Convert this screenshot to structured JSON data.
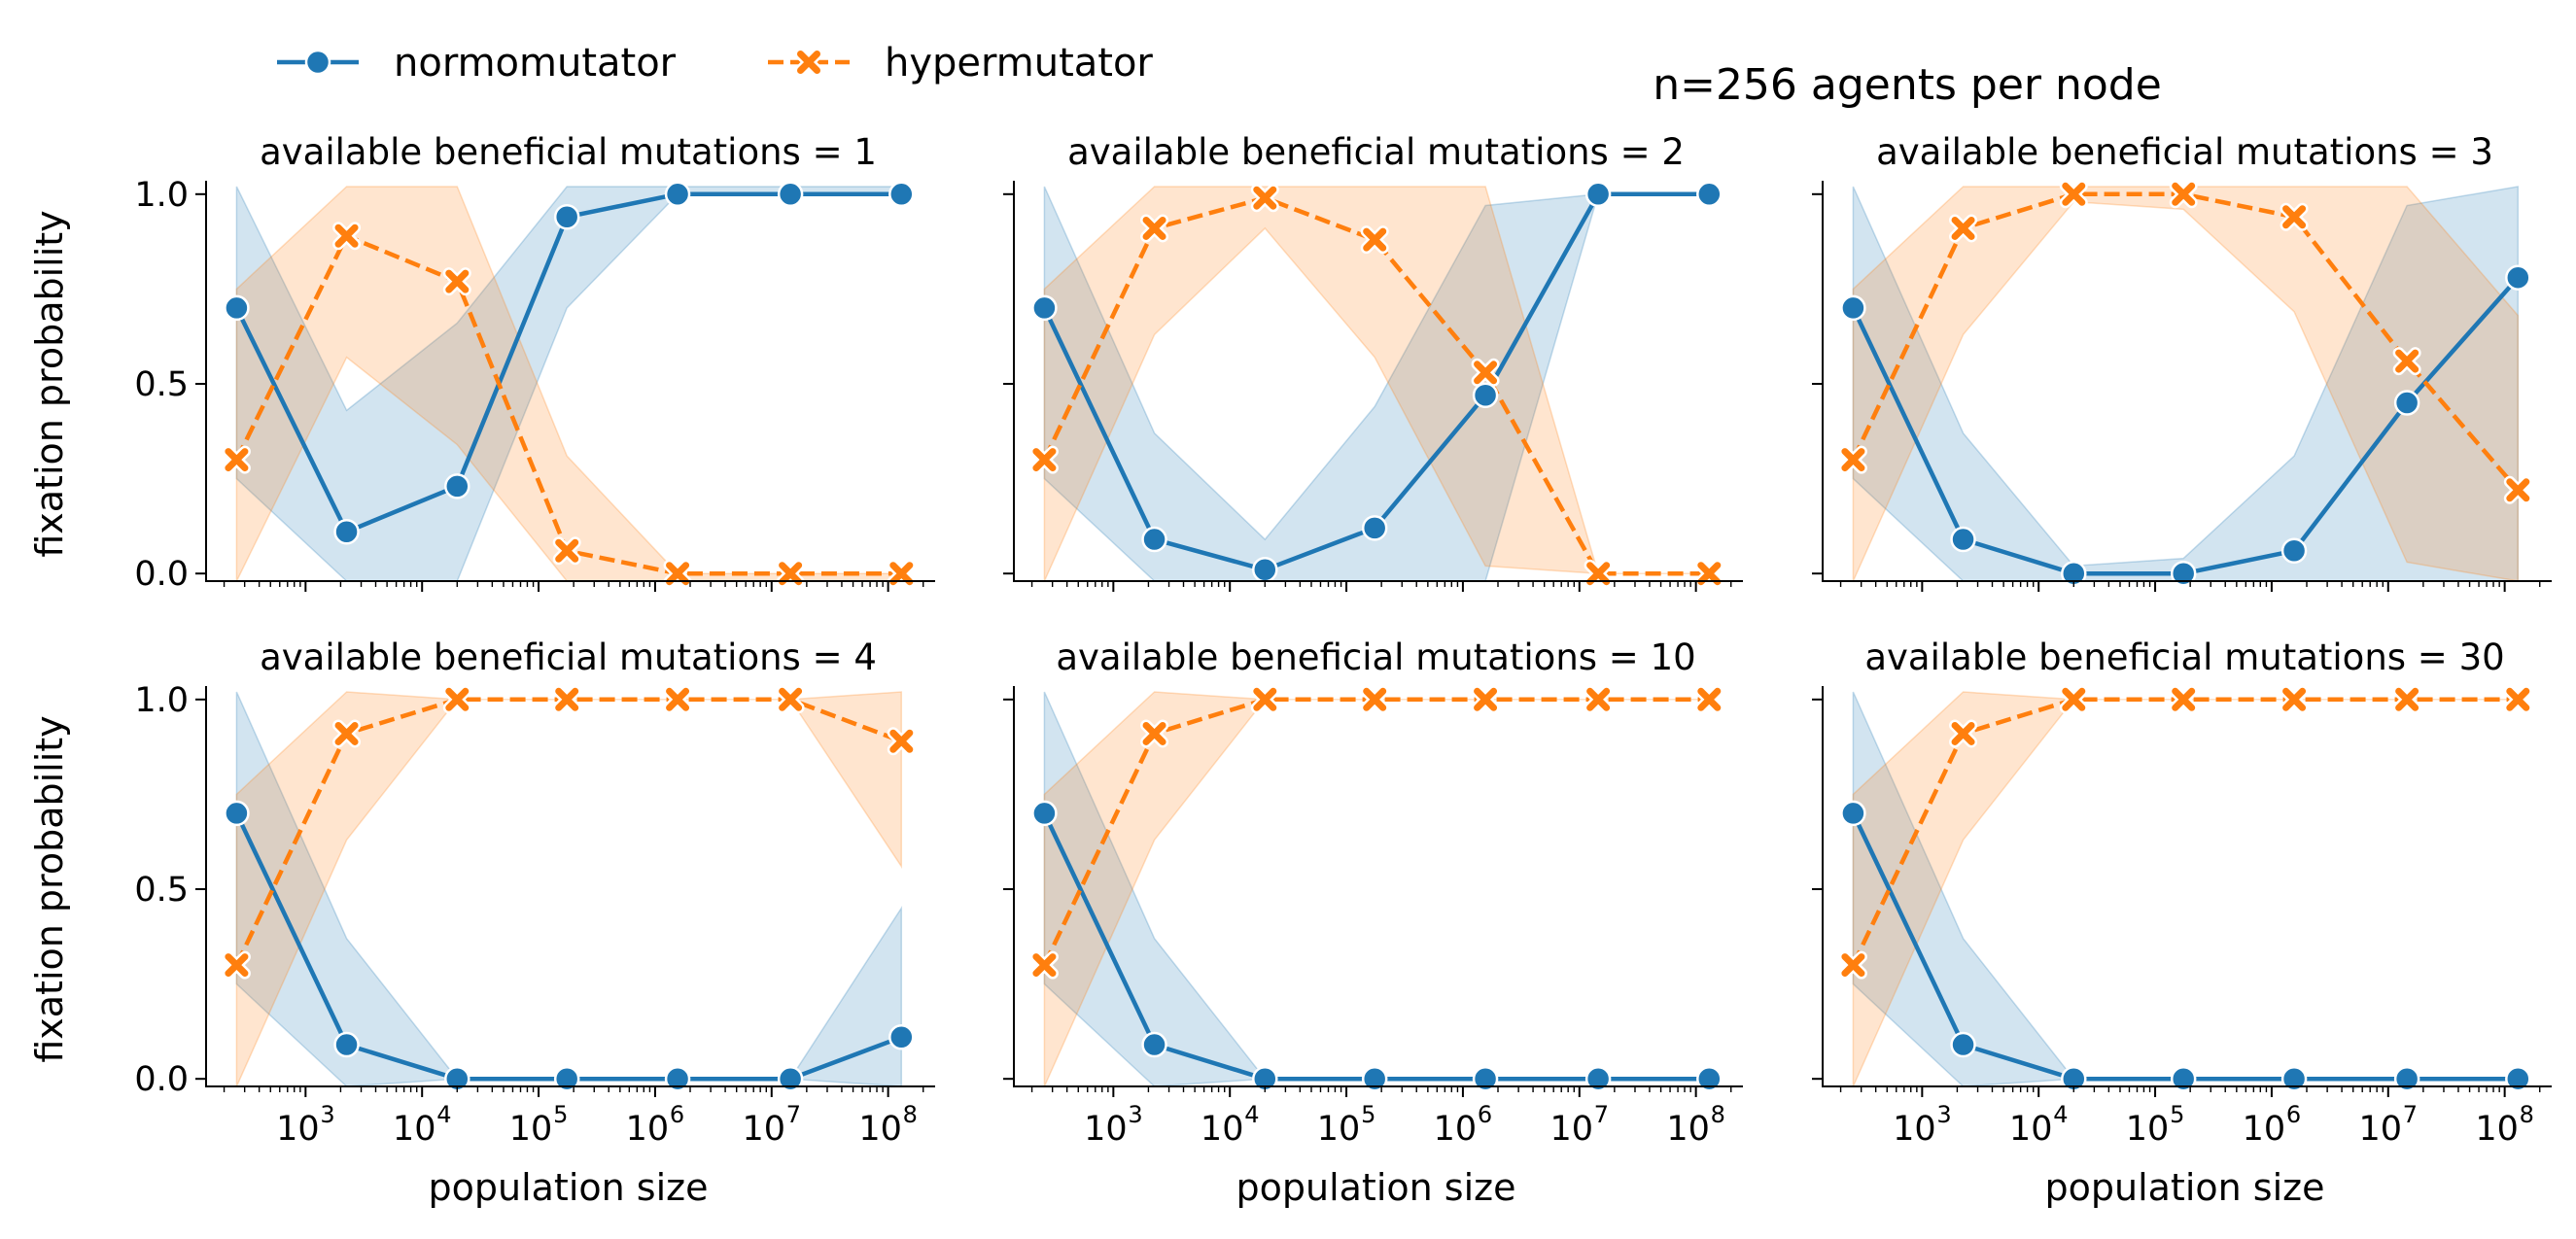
{
  "chart_data": {
    "type": "line",
    "title": "n=256 agents per node",
    "xlabel": "population size",
    "ylabel": "fixation probability",
    "xscale": "log",
    "xlim": [
      140,
      230000000
    ],
    "ylim": [
      -0.02,
      1.02
    ],
    "x": [
      256,
      2250,
      20000,
      175000,
      1560000,
      14500000,
      130000000
    ],
    "yticks": [
      {
        "value": 0.0,
        "label": "0.0"
      },
      {
        "value": 0.5,
        "label": "0.5"
      },
      {
        "value": 1.0,
        "label": "1.0"
      }
    ],
    "xticks": [
      {
        "value": 1000,
        "base": "10",
        "exp": "3"
      },
      {
        "value": 10000,
        "base": "10",
        "exp": "4"
      },
      {
        "value": 100000,
        "base": "10",
        "exp": "5"
      },
      {
        "value": 1000000,
        "base": "10",
        "exp": "6"
      },
      {
        "value": 10000000,
        "base": "10",
        "exp": "7"
      },
      {
        "value": 100000000,
        "base": "10",
        "exp": "8"
      }
    ],
    "legend": {
      "placement": "top-left",
      "entries": [
        {
          "name": "normomutator",
          "color": "#1f77b4",
          "marker": "circle",
          "dash": "solid"
        },
        {
          "name": "hypermutator",
          "color": "#ff7f0e",
          "marker": "x",
          "dash": "dashed"
        }
      ]
    },
    "panels": [
      {
        "title": "available beneficial mutations = 1",
        "series": [
          {
            "name": "normomutator",
            "values": [
              0.7,
              0.11,
              0.23,
              0.94,
              1.0,
              1.0,
              1.0
            ],
            "lower": [
              0.25,
              -0.02,
              -0.02,
              0.7,
              1.0,
              1.0,
              1.0
            ],
            "upper": [
              1.02,
              0.43,
              0.66,
              1.02,
              1.02,
              1.02,
              1.02
            ]
          },
          {
            "name": "hypermutator",
            "values": [
              0.3,
              0.89,
              0.77,
              0.06,
              0.0,
              0.0,
              0.0
            ],
            "lower": [
              -0.02,
              0.57,
              0.34,
              -0.02,
              -0.02,
              -0.02,
              -0.02
            ],
            "upper": [
              0.75,
              1.02,
              1.02,
              0.31,
              0.0,
              0.0,
              0.0
            ]
          }
        ]
      },
      {
        "title": "available beneficial mutations = 2",
        "series": [
          {
            "name": "normomutator",
            "values": [
              0.7,
              0.09,
              0.01,
              0.12,
              0.47,
              1.0,
              1.0
            ],
            "lower": [
              0.25,
              -0.02,
              -0.02,
              -0.02,
              -0.02,
              1.0,
              1.0
            ],
            "upper": [
              1.02,
              0.37,
              0.09,
              0.44,
              0.97,
              1.0,
              1.0
            ]
          },
          {
            "name": "hypermutator",
            "values": [
              0.3,
              0.91,
              0.99,
              0.88,
              0.53,
              0.0,
              0.0
            ],
            "lower": [
              -0.02,
              0.63,
              0.91,
              0.57,
              0.02,
              0.0,
              0.0
            ],
            "upper": [
              0.75,
              1.02,
              1.02,
              1.02,
              1.02,
              0.0,
              0.0
            ]
          }
        ]
      },
      {
        "title": "available beneficial mutations = 3",
        "series": [
          {
            "name": "normomutator",
            "values": [
              0.7,
              0.09,
              0.0,
              0.0,
              0.06,
              0.45,
              0.78
            ],
            "lower": [
              0.25,
              -0.02,
              -0.02,
              -0.02,
              -0.02,
              -0.02,
              -0.02
            ],
            "upper": [
              1.02,
              0.37,
              0.02,
              0.04,
              0.31,
              0.97,
              1.02
            ]
          },
          {
            "name": "hypermutator",
            "values": [
              0.3,
              0.91,
              1.0,
              1.0,
              0.94,
              0.56,
              0.22
            ],
            "lower": [
              -0.02,
              0.63,
              0.98,
              0.96,
              0.69,
              0.03,
              -0.02
            ],
            "upper": [
              0.75,
              1.02,
              1.02,
              1.02,
              1.02,
              1.02,
              0.68
            ]
          }
        ]
      },
      {
        "title": "available beneficial mutations = 4",
        "series": [
          {
            "name": "normomutator",
            "values": [
              0.7,
              0.09,
              0.0,
              0.0,
              0.0,
              0.0,
              0.11
            ],
            "lower": [
              0.25,
              -0.02,
              0.0,
              0.0,
              0.0,
              0.0,
              -0.02
            ],
            "upper": [
              1.02,
              0.37,
              0.0,
              0.0,
              0.0,
              0.0,
              0.45
            ]
          },
          {
            "name": "hypermutator",
            "values": [
              0.3,
              0.91,
              1.0,
              1.0,
              1.0,
              1.0,
              0.89
            ],
            "lower": [
              -0.02,
              0.63,
              1.0,
              1.0,
              1.0,
              1.0,
              0.56
            ],
            "upper": [
              0.75,
              1.02,
              1.0,
              1.0,
              1.0,
              1.0,
              1.02
            ]
          }
        ]
      },
      {
        "title": "available beneficial mutations = 10",
        "series": [
          {
            "name": "normomutator",
            "values": [
              0.7,
              0.09,
              0.0,
              0.0,
              0.0,
              0.0,
              0.0
            ],
            "lower": [
              0.25,
              -0.02,
              0.0,
              0.0,
              0.0,
              0.0,
              0.0
            ],
            "upper": [
              1.02,
              0.37,
              0.0,
              0.0,
              0.0,
              0.0,
              0.0
            ]
          },
          {
            "name": "hypermutator",
            "values": [
              0.3,
              0.91,
              1.0,
              1.0,
              1.0,
              1.0,
              1.0
            ],
            "lower": [
              -0.02,
              0.63,
              1.0,
              1.0,
              1.0,
              1.0,
              1.0
            ],
            "upper": [
              0.75,
              1.02,
              1.0,
              1.0,
              1.0,
              1.0,
              1.0
            ]
          }
        ]
      },
      {
        "title": "available beneficial mutations = 30",
        "series": [
          {
            "name": "normomutator",
            "values": [
              0.7,
              0.09,
              0.0,
              0.0,
              0.0,
              0.0,
              0.0
            ],
            "lower": [
              0.25,
              -0.02,
              0.0,
              0.0,
              0.0,
              0.0,
              0.0
            ],
            "upper": [
              1.02,
              0.37,
              0.0,
              0.0,
              0.0,
              0.0,
              0.0
            ]
          },
          {
            "name": "hypermutator",
            "values": [
              0.3,
              0.91,
              1.0,
              1.0,
              1.0,
              1.0,
              1.0
            ],
            "lower": [
              -0.02,
              0.63,
              1.0,
              1.0,
              1.0,
              1.0,
              1.0
            ],
            "upper": [
              0.75,
              1.02,
              1.0,
              1.0,
              1.0,
              1.0,
              1.0
            ]
          }
        ]
      }
    ]
  }
}
